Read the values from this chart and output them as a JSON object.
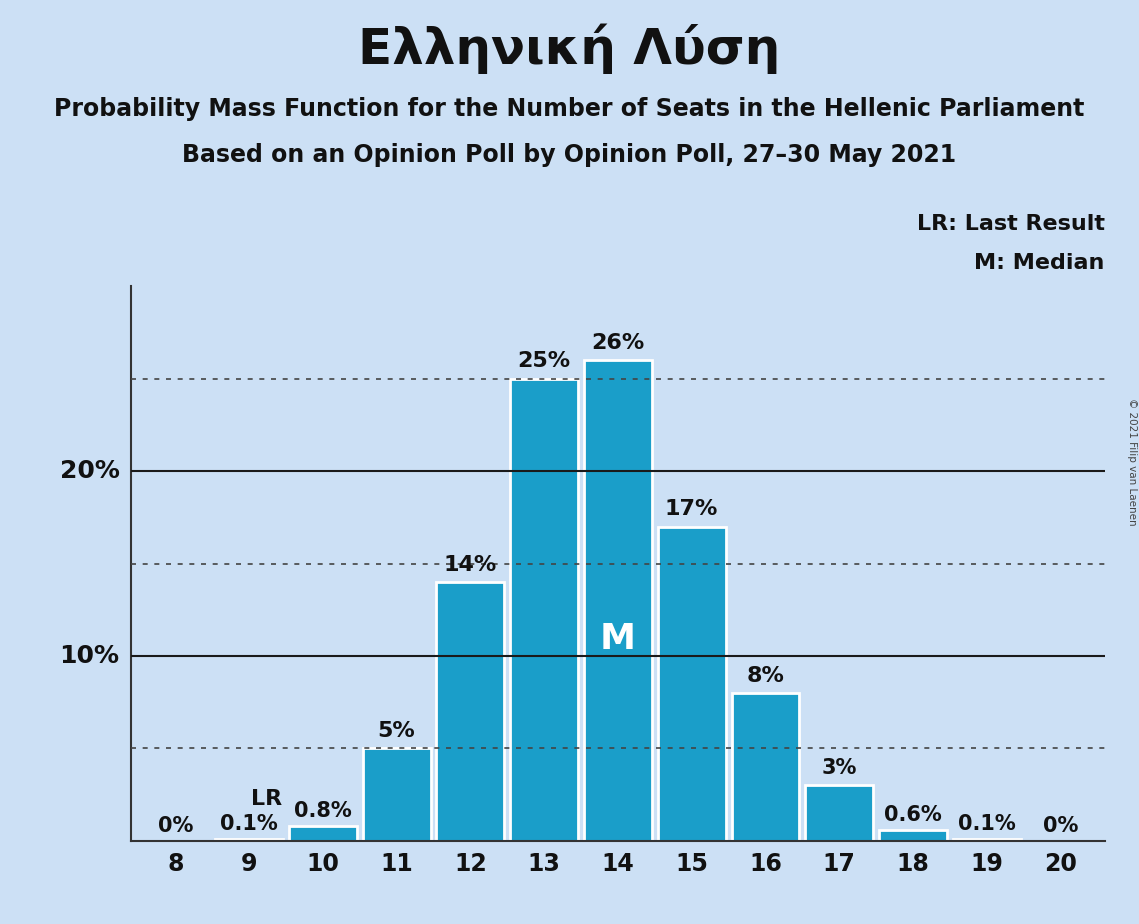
{
  "title": "Ελληνική Λύση",
  "subtitle1": "Probability Mass Function for the Number of Seats in the Hellenic Parliament",
  "subtitle2": "Based on an Opinion Poll by Opinion Poll, 27–30 May 2021",
  "copyright": "© 2021 Filip van Laenen",
  "categories": [
    8,
    9,
    10,
    11,
    12,
    13,
    14,
    15,
    16,
    17,
    18,
    19,
    20
  ],
  "values": [
    0.0,
    0.1,
    0.8,
    5.0,
    14.0,
    25.0,
    26.0,
    17.0,
    8.0,
    3.0,
    0.6,
    0.1,
    0.0
  ],
  "bar_color": "#1a9ec9",
  "background_color": "#cce0f5",
  "bar_labels": [
    "0%",
    "0.1%",
    "0.8%",
    "5%",
    "14%",
    "25%",
    "26%",
    "17%",
    "8%",
    "3%",
    "0.6%",
    "0.1%",
    "0%"
  ],
  "dotted_lines": [
    5.0,
    15.0,
    25.0
  ],
  "solid_lines": [
    10.0,
    20.0
  ],
  "ylim": [
    0,
    30
  ],
  "median_seat": 14,
  "last_result_seat": 10,
  "legend_lr": "LR: Last Result",
  "legend_m": "M: Median",
  "median_label": "M",
  "lr_label": "LR",
  "title_fontsize": 36,
  "subtitle_fontsize": 17,
  "tick_fontsize": 17,
  "label_fontsize": 15,
  "ytick_values": [
    10,
    20
  ],
  "ytick_labels": [
    "10%",
    "20%"
  ]
}
